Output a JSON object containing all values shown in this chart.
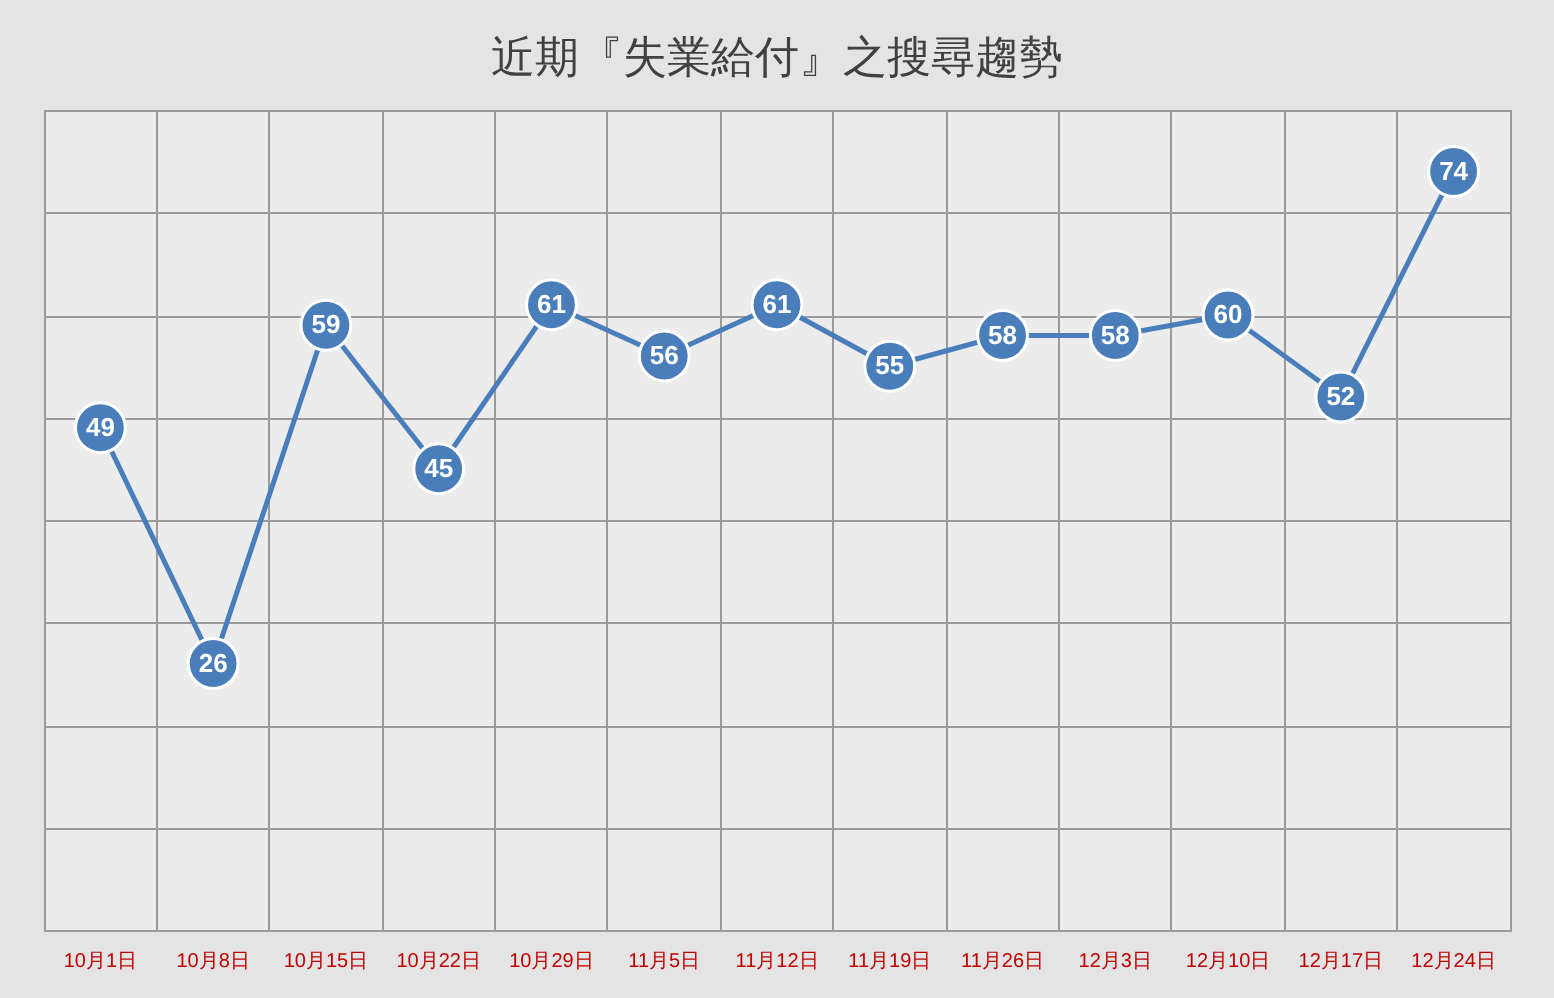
{
  "chart_data": {
    "type": "line",
    "title": "近期『失業給付』之搜尋趨勢",
    "categories": [
      "10月1日",
      "10月8日",
      "10月15日",
      "10月22日",
      "10月29日",
      "11月5日",
      "11月12日",
      "11月19日",
      "11月26日",
      "12月3日",
      "12月10日",
      "12月17日",
      "12月24日"
    ],
    "values": [
      49,
      26,
      59,
      45,
      61,
      56,
      61,
      55,
      58,
      58,
      60,
      52,
      74
    ],
    "color": "#4a7ebb",
    "ylim": [
      0,
      80
    ],
    "yticks": [
      {
        "value": 0,
        "label": null
      },
      {
        "value": 10,
        "label": null
      },
      {
        "value": 20,
        "label": null
      },
      {
        "value": 30,
        "label": null
      },
      {
        "value": 40,
        "label": null
      },
      {
        "value": 50,
        "label": null
      },
      {
        "value": 60,
        "label": null
      },
      {
        "value": 70,
        "label": null
      },
      {
        "value": 80,
        "label": null
      }
    ],
    "grid": true,
    "marker": "circle",
    "data_labels": true,
    "tick_labels": "x"
  }
}
